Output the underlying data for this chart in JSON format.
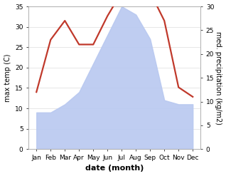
{
  "months": [
    "Jan",
    "Feb",
    "Mar",
    "Apr",
    "May",
    "Jun",
    "Jul",
    "Aug",
    "Sep",
    "Oct",
    "Nov",
    "Dec"
  ],
  "precipitation": [
    9,
    9,
    11,
    14,
    21,
    28,
    35,
    33,
    27,
    12,
    11,
    11
  ],
  "max_temp": [
    12,
    23,
    27,
    22,
    22,
    28,
    33,
    33,
    33,
    27,
    13,
    11
  ],
  "precip_color": "#b8c8f0",
  "temp_color": "#c0392b",
  "ylabel_left": "max temp (C)",
  "ylabel_right": "med. precipitation (kg/m2)",
  "xlabel": "date (month)",
  "ylim_left": [
    0,
    35
  ],
  "ylim_right": [
    0,
    30
  ],
  "tick_left": [
    0,
    5,
    10,
    15,
    20,
    25,
    30,
    35
  ],
  "tick_right": [
    0,
    5,
    10,
    15,
    20,
    25,
    30
  ],
  "bg_color": "#ffffff",
  "grid_color": "#dddddd"
}
